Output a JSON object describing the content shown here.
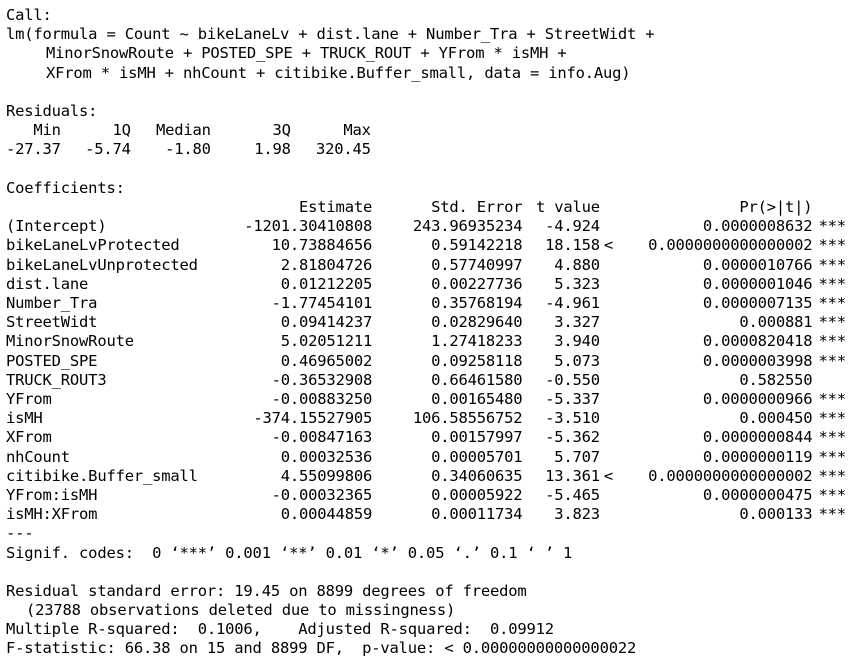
{
  "call": {
    "label": "Call:",
    "line1": "lm(formula = Count ~ bikeLaneLv + dist.lane + Number_Tra + StreetWidt +",
    "line2": "MinorSnowRoute + POSTED_SPE + TRUCK_ROUT + YFrom * isMH +",
    "line3": "XFrom * isMH + nhCount + citibike.Buffer_small, data = info.Aug)"
  },
  "residuals": {
    "label": "Residuals:",
    "headers": [
      "Min",
      "1Q",
      "Median",
      "3Q",
      "Max"
    ],
    "values": [
      "-27.37",
      "-5.74",
      "-1.80",
      "1.98",
      "320.45"
    ]
  },
  "coefficients": {
    "label": "Coefficients:",
    "headers": {
      "estimate": "Estimate",
      "std_error": "Std. Error",
      "t_value": "t value",
      "p_value": "Pr(>|t|)"
    },
    "rows": [
      {
        "term": "(Intercept)",
        "estimate": "-1201.30410808",
        "std_error": "243.96935234",
        "t_value": "-4.924",
        "lt": "",
        "p_value": "0.0000008632",
        "sig": "***"
      },
      {
        "term": "bikeLaneLvProtected",
        "estimate": "10.73884656",
        "std_error": "0.59142218",
        "t_value": "18.158",
        "lt": "<",
        "p_value": "0.0000000000000002",
        "sig": "***"
      },
      {
        "term": "bikeLaneLvUnprotected",
        "estimate": "2.81804726",
        "std_error": "0.57740997",
        "t_value": "4.880",
        "lt": "",
        "p_value": "0.0000010766",
        "sig": "***"
      },
      {
        "term": "dist.lane",
        "estimate": "0.01212205",
        "std_error": "0.00227736",
        "t_value": "5.323",
        "lt": "",
        "p_value": "0.0000001046",
        "sig": "***"
      },
      {
        "term": "Number_Tra",
        "estimate": "-1.77454101",
        "std_error": "0.35768194",
        "t_value": "-4.961",
        "lt": "",
        "p_value": "0.0000007135",
        "sig": "***"
      },
      {
        "term": "StreetWidt",
        "estimate": "0.09414237",
        "std_error": "0.02829640",
        "t_value": "3.327",
        "lt": "",
        "p_value": "0.000881",
        "sig": "***"
      },
      {
        "term": "MinorSnowRoute",
        "estimate": "5.02051211",
        "std_error": "1.27418233",
        "t_value": "3.940",
        "lt": "",
        "p_value": "0.0000820418",
        "sig": "***"
      },
      {
        "term": "POSTED_SPE",
        "estimate": "0.46965002",
        "std_error": "0.09258118",
        "t_value": "5.073",
        "lt": "",
        "p_value": "0.0000003998",
        "sig": "***"
      },
      {
        "term": "TRUCK_ROUT3",
        "estimate": "-0.36532908",
        "std_error": "0.66461580",
        "t_value": "-0.550",
        "lt": "",
        "p_value": "0.582550",
        "sig": ""
      },
      {
        "term": "YFrom",
        "estimate": "-0.00883250",
        "std_error": "0.00165480",
        "t_value": "-5.337",
        "lt": "",
        "p_value": "0.0000000966",
        "sig": "***"
      },
      {
        "term": "isMH",
        "estimate": "-374.15527905",
        "std_error": "106.58556752",
        "t_value": "-3.510",
        "lt": "",
        "p_value": "0.000450",
        "sig": "***"
      },
      {
        "term": "XFrom",
        "estimate": "-0.00847163",
        "std_error": "0.00157997",
        "t_value": "-5.362",
        "lt": "",
        "p_value": "0.0000000844",
        "sig": "***"
      },
      {
        "term": "nhCount",
        "estimate": "0.00032536",
        "std_error": "0.00005701",
        "t_value": "5.707",
        "lt": "",
        "p_value": "0.0000000119",
        "sig": "***"
      },
      {
        "term": "citibike.Buffer_small",
        "estimate": "4.55099806",
        "std_error": "0.34060635",
        "t_value": "13.361",
        "lt": "<",
        "p_value": "0.0000000000000002",
        "sig": "***"
      },
      {
        "term": "YFrom:isMH",
        "estimate": "-0.00032365",
        "std_error": "0.00005922",
        "t_value": "-5.465",
        "lt": "",
        "p_value": "0.0000000475",
        "sig": "***"
      },
      {
        "term": "isMH:XFrom",
        "estimate": "0.00044859",
        "std_error": "0.00011734",
        "t_value": "3.823",
        "lt": "",
        "p_value": "0.000133",
        "sig": "***"
      }
    ],
    "separator": "---",
    "signif_codes": "Signif. codes:  0 ‘***’ 0.001 ‘**’ 0.01 ‘*’ 0.05 ‘.’ 0.1 ‘ ’ 1"
  },
  "summary": {
    "rse": "Residual standard error: 19.45 on 8899 degrees of freedom",
    "missing": "(23788 observations deleted due to missingness)",
    "rsq": "Multiple R-squared:  0.1006,\tAdjusted R-squared:  0.09912",
    "fstat": "F-statistic: 66.38 on 15 and 8899 DF,  p-value: < 0.00000000000000022"
  }
}
